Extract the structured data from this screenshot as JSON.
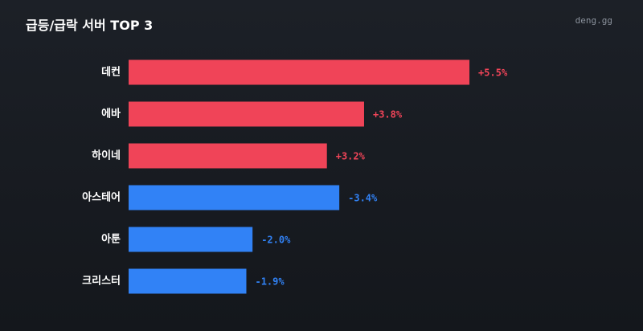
{
  "header": {
    "title": "급등/급락 서버 TOP 3",
    "brand": "deng.gg"
  },
  "colors": {
    "positive": "#f04458",
    "negative": "#3182f6",
    "label": "#ffffff"
  },
  "chart_data": {
    "type": "bar",
    "orientation": "horizontal",
    "title": "급등/급락 서버 TOP 3",
    "categories": [
      "데컨",
      "에바",
      "하이네",
      "아스테어",
      "아툰",
      "크리스터"
    ],
    "values": [
      5.5,
      3.8,
      3.2,
      -3.4,
      -2.0,
      -1.9
    ],
    "value_labels": [
      "+5.5%",
      "+3.8%",
      "+3.2%",
      "-3.4%",
      "-2.0%",
      "-1.9%"
    ],
    "xlabel": "",
    "ylabel": "",
    "grid": false,
    "legend": "none"
  }
}
